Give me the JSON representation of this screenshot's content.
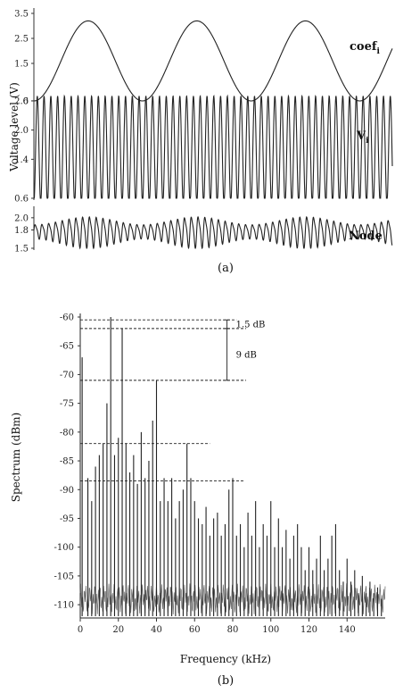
{
  "chart_data": [
    {
      "id": "a",
      "type": "line",
      "caption": "(a)",
      "ylabel": "Voltage level (V)",
      "x_range": [
        0,
        3.3
      ],
      "panels": [
        {
          "name": "coef",
          "subscript": "i",
          "ylim": [
            0,
            3.5
          ],
          "yticks": [
            "3.5",
            "2.5",
            "1.5",
            "0"
          ],
          "ytick_values": [
            3.5,
            2.5,
            1.5,
            0
          ],
          "signal": {
            "offset": 1.6,
            "amplitude": 1.6,
            "frequency": 1.0,
            "phase": 0.0
          }
        },
        {
          "name": "V",
          "subscript": "i",
          "ylim": [
            0.6,
            2.8
          ],
          "yticks": [
            "2.6",
            "2.0",
            "1.4",
            "0.6"
          ],
          "ytick_values": [
            2.6,
            2.0,
            1.4,
            0.6
          ],
          "signal": {
            "offset": 1.6,
            "amplitude": 1.1,
            "frequency": 16.0,
            "phase": 0.0
          }
        },
        {
          "name": "Node",
          "subscript": "",
          "ylim": [
            1.5,
            2.1
          ],
          "yticks": [
            "2.0",
            "1.8",
            "1.5"
          ],
          "ytick_values": [
            2.0,
            1.8,
            1.5
          ],
          "signal": {
            "offset": 1.78,
            "amplitude": 0.24,
            "frequency": 16.0,
            "mod_frequency": 1.0,
            "mod_depth": 0.55,
            "harmonic": 0.25
          }
        }
      ]
    },
    {
      "id": "b",
      "type": "bar",
      "caption": "(b)",
      "xlabel": "Frequency (kHz)",
      "ylabel": "Spectrum (dBm)",
      "xlim": [
        0,
        160
      ],
      "ylim": [
        -112,
        -60
      ],
      "xticks": [
        "0",
        "20",
        "40",
        "60",
        "80",
        "100",
        "120",
        "140"
      ],
      "xtick_values": [
        0,
        20,
        40,
        60,
        80,
        100,
        120,
        140
      ],
      "yticks": [
        "-60",
        "-65",
        "-70",
        "-75",
        "-80",
        "-85",
        "-90",
        "-95",
        "-100",
        "-105",
        "-110"
      ],
      "ytick_values": [
        -60,
        -65,
        -70,
        -75,
        -80,
        -85,
        -90,
        -95,
        -100,
        -105,
        -110
      ],
      "peaks": [
        {
          "x": 1,
          "y": -67
        },
        {
          "x": 4,
          "y": -88
        },
        {
          "x": 6,
          "y": -92
        },
        {
          "x": 8,
          "y": -86
        },
        {
          "x": 10,
          "y": -84
        },
        {
          "x": 12,
          "y": -82
        },
        {
          "x": 14,
          "y": -75
        },
        {
          "x": 16,
          "y": -60
        },
        {
          "x": 18,
          "y": -84
        },
        {
          "x": 20,
          "y": -81
        },
        {
          "x": 22,
          "y": -62
        },
        {
          "x": 24,
          "y": -82
        },
        {
          "x": 26,
          "y": -87
        },
        {
          "x": 28,
          "y": -84
        },
        {
          "x": 30,
          "y": -89
        },
        {
          "x": 32,
          "y": -80
        },
        {
          "x": 34,
          "y": -88
        },
        {
          "x": 36,
          "y": -85
        },
        {
          "x": 38,
          "y": -78
        },
        {
          "x": 40,
          "y": -71
        },
        {
          "x": 42,
          "y": -92
        },
        {
          "x": 44,
          "y": -88
        },
        {
          "x": 46,
          "y": -92
        },
        {
          "x": 48,
          "y": -88
        },
        {
          "x": 50,
          "y": -95
        },
        {
          "x": 52,
          "y": -92
        },
        {
          "x": 54,
          "y": -90
        },
        {
          "x": 56,
          "y": -82
        },
        {
          "x": 58,
          "y": -88
        },
        {
          "x": 60,
          "y": -92
        },
        {
          "x": 62,
          "y": -95
        },
        {
          "x": 64,
          "y": -96
        },
        {
          "x": 66,
          "y": -93
        },
        {
          "x": 68,
          "y": -98
        },
        {
          "x": 70,
          "y": -95
        },
        {
          "x": 72,
          "y": -94
        },
        {
          "x": 74,
          "y": -98
        },
        {
          "x": 76,
          "y": -96
        },
        {
          "x": 78,
          "y": -90
        },
        {
          "x": 80,
          "y": -88
        },
        {
          "x": 82,
          "y": -98
        },
        {
          "x": 84,
          "y": -96
        },
        {
          "x": 86,
          "y": -100
        },
        {
          "x": 88,
          "y": -94
        },
        {
          "x": 90,
          "y": -98
        },
        {
          "x": 92,
          "y": -92
        },
        {
          "x": 94,
          "y": -100
        },
        {
          "x": 96,
          "y": -96
        },
        {
          "x": 98,
          "y": -98
        },
        {
          "x": 100,
          "y": -92
        },
        {
          "x": 102,
          "y": -100
        },
        {
          "x": 104,
          "y": -95
        },
        {
          "x": 106,
          "y": -100
        },
        {
          "x": 108,
          "y": -97
        },
        {
          "x": 110,
          "y": -102
        },
        {
          "x": 112,
          "y": -98
        },
        {
          "x": 114,
          "y": -96
        },
        {
          "x": 116,
          "y": -100
        },
        {
          "x": 118,
          "y": -104
        },
        {
          "x": 120,
          "y": -100
        },
        {
          "x": 122,
          "y": -104
        },
        {
          "x": 124,
          "y": -102
        },
        {
          "x": 126,
          "y": -98
        },
        {
          "x": 128,
          "y": -104
        },
        {
          "x": 130,
          "y": -102
        },
        {
          "x": 132,
          "y": -98
        },
        {
          "x": 134,
          "y": -96
        },
        {
          "x": 136,
          "y": -104
        },
        {
          "x": 138,
          "y": -106
        },
        {
          "x": 140,
          "y": -102
        },
        {
          "x": 142,
          "y": -106
        },
        {
          "x": 144,
          "y": -104
        },
        {
          "x": 146,
          "y": -108
        },
        {
          "x": 148,
          "y": -105
        },
        {
          "x": 150,
          "y": -108
        },
        {
          "x": 152,
          "y": -106
        },
        {
          "x": 154,
          "y": -108
        },
        {
          "x": 156,
          "y": -107
        },
        {
          "x": 158,
          "y": -109
        }
      ],
      "reference_lines": [
        {
          "y": -60.5,
          "x_end": 82
        },
        {
          "y": -62,
          "x_end": 87
        },
        {
          "y": -71,
          "x_end": 87
        },
        {
          "y": -82,
          "x_end": 68
        },
        {
          "y": -88.5,
          "x_end": 86
        }
      ],
      "annotations": [
        {
          "label": "1.5 dB",
          "y_top": -60.5,
          "y_bottom": -62,
          "x": 77
        },
        {
          "label": "9 dB",
          "y_top": -62,
          "y_bottom": -71,
          "x": 77
        }
      ]
    }
  ]
}
